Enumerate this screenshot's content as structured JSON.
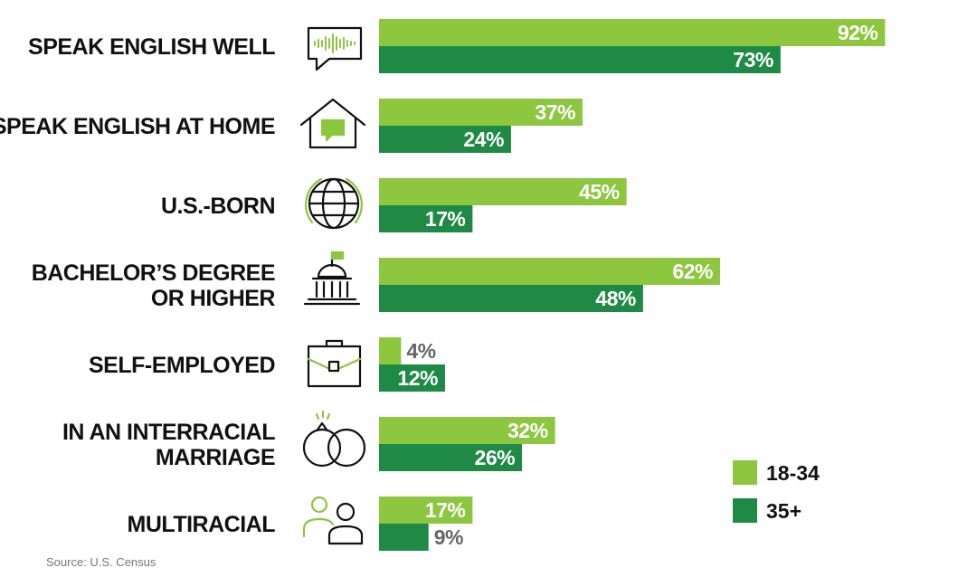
{
  "chart_data": {
    "type": "bar",
    "orientation": "horizontal",
    "categories": [
      [
        "SPEAK ENGLISH WELL"
      ],
      [
        "SPEAK ENGLISH AT HOME"
      ],
      [
        "U.S.-BORN"
      ],
      [
        "BACHELOR’S DEGREE",
        "OR HIGHER"
      ],
      [
        "SELF-EMPLOYED"
      ],
      [
        "IN AN INTERRACIAL",
        "MARRIAGE"
      ],
      [
        "MULTIRACIAL"
      ]
    ],
    "icons": [
      "speech-bubble-soundwave-icon",
      "house-chat-icon",
      "globe-icon",
      "university-building-icon",
      "briefcase-icon",
      "wedding-rings-icon",
      "people-icon"
    ],
    "series": [
      {
        "name": "18-34",
        "color": "#8dc63f",
        "values": [
          92,
          37,
          45,
          62,
          4,
          32,
          17
        ],
        "labels": [
          "92%",
          "37%",
          "45%",
          "62%",
          "4%",
          "32%",
          "17%"
        ]
      },
      {
        "name": "35+",
        "color": "#1f8a46",
        "values": [
          73,
          24,
          17,
          48,
          12,
          26,
          9
        ],
        "labels": [
          "73%",
          "24%",
          "17%",
          "48%",
          "12%",
          "26%",
          "9%"
        ]
      }
    ],
    "xlim": [
      0,
      100
    ],
    "legend_position": "bottom-right"
  },
  "source": "Source: U.S. Census"
}
